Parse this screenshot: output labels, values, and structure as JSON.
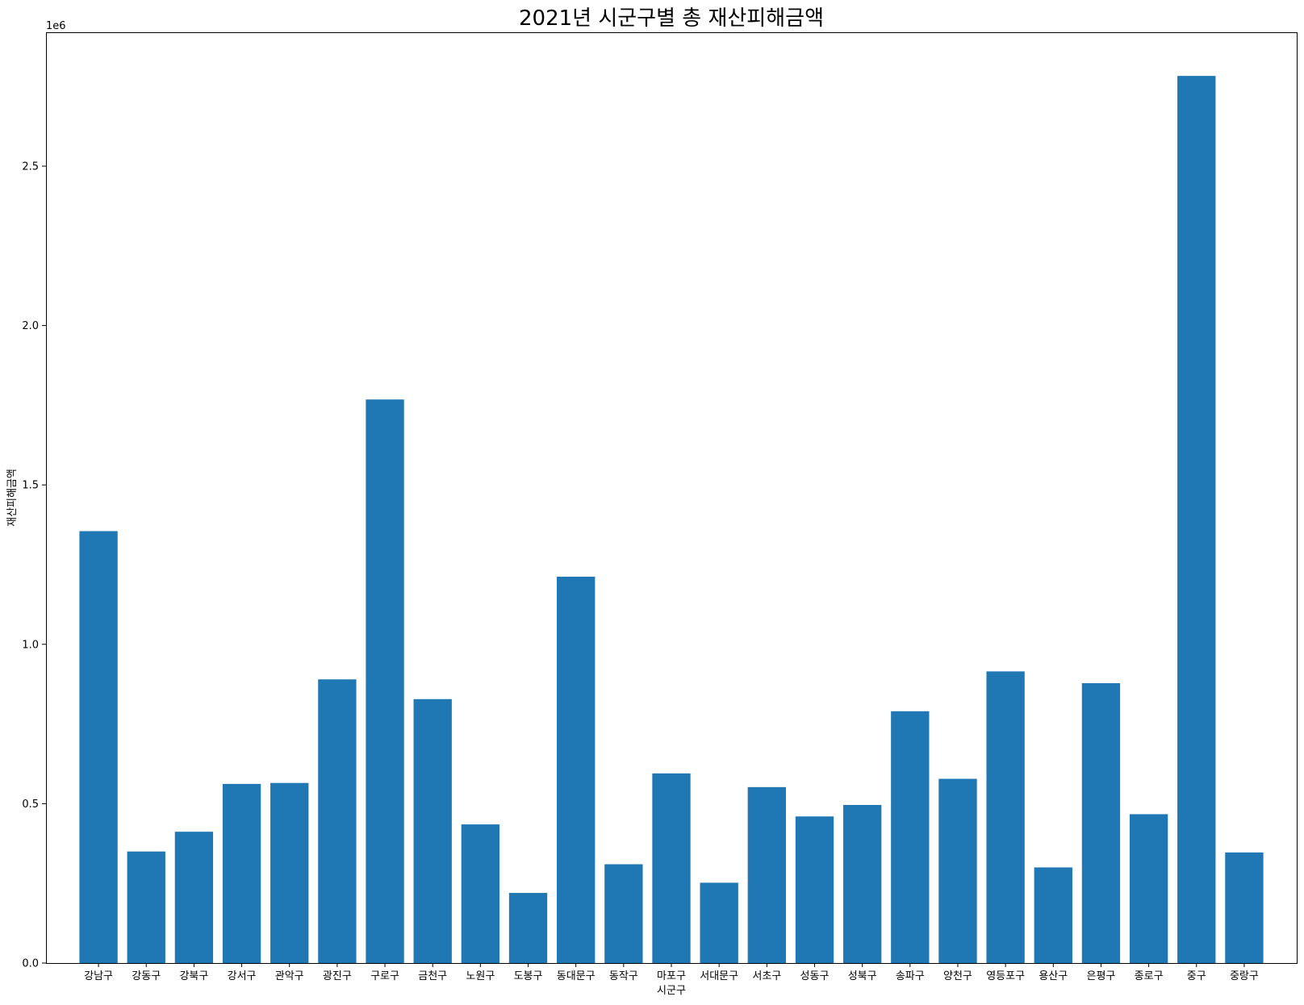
{
  "chart_data": {
    "type": "bar",
    "title": "2021년 시군구별 총 재산피해금액",
    "xlabel": "시군구",
    "ylabel": "재산피해금액",
    "offset_text": "1e6",
    "y_scale": 1000000,
    "ylim": [
      0,
      2920000
    ],
    "yticks": [
      0,
      500000,
      1000000,
      1500000,
      2000000,
      2500000
    ],
    "ytick_labels": [
      "0.0",
      "0.5",
      "1.0",
      "1.5",
      "2.0",
      "2.5"
    ],
    "grid": false,
    "color": "#1f77b4",
    "categories": [
      "강남구",
      "강동구",
      "강북구",
      "강서구",
      "관악구",
      "광진구",
      "구로구",
      "금천구",
      "노원구",
      "도봉구",
      "동대문구",
      "동작구",
      "마포구",
      "서대문구",
      "서초구",
      "성동구",
      "성북구",
      "송파구",
      "양천구",
      "영등포구",
      "용산구",
      "은평구",
      "종로구",
      "중구",
      "중랑구"
    ],
    "values": [
      1355000,
      350000,
      412000,
      562000,
      565000,
      890000,
      1768000,
      828000,
      435000,
      220000,
      1212000,
      310000,
      595000,
      252000,
      552000,
      460000,
      496000,
      790000,
      578000,
      915000,
      300000,
      878000,
      467000,
      2783000,
      347000
    ]
  }
}
